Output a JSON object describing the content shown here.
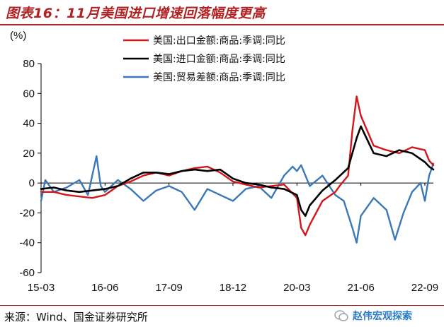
{
  "header": {
    "title": "图表16：11月美国进口增速回落幅度更高"
  },
  "footer": {
    "source": "来源：Wind、国金证券研究所",
    "watermark": "赵伟宏观探索"
  },
  "colors": {
    "accent": "#b22222",
    "exports": "#d2161b",
    "imports": "#000000",
    "balance": "#3b78b5",
    "watermark": "#2b7cc4"
  },
  "chart_data": {
    "type": "line",
    "unit_label": "(%)",
    "ylim": [
      -60,
      80
    ],
    "y_ticks": [
      "80",
      "60",
      "40",
      "20",
      "0",
      "-20",
      "-40",
      "-60"
    ],
    "x_ticks": [
      "15-03",
      "16-06",
      "17-09",
      "18-12",
      "20-03",
      "21-06",
      "22-09"
    ],
    "x_range": [
      "2015-03",
      "2022-11"
    ],
    "grid": false,
    "legend_position": "top-right",
    "series": [
      {
        "name": "美国:出口金额:商品:季调:同比",
        "color": "#d2161b",
        "points": [
          [
            "2015-03",
            -6
          ],
          [
            "2015-06",
            -6
          ],
          [
            "2015-09",
            -8
          ],
          [
            "2015-12",
            -9
          ],
          [
            "2016-03",
            -10
          ],
          [
            "2016-06",
            -8
          ],
          [
            "2016-09",
            -2
          ],
          [
            "2016-12",
            1
          ],
          [
            "2017-03",
            5
          ],
          [
            "2017-06",
            7
          ],
          [
            "2017-09",
            5
          ],
          [
            "2017-12",
            8
          ],
          [
            "2018-03",
            10
          ],
          [
            "2018-06",
            11
          ],
          [
            "2018-09",
            7
          ],
          [
            "2018-12",
            1
          ],
          [
            "2019-03",
            -1
          ],
          [
            "2019-06",
            -3
          ],
          [
            "2019-09",
            -2
          ],
          [
            "2019-12",
            -1
          ],
          [
            "2020-03",
            -10
          ],
          [
            "2020-04",
            -30
          ],
          [
            "2020-05",
            -35
          ],
          [
            "2020-06",
            -28
          ],
          [
            "2020-09",
            -12
          ],
          [
            "2020-12",
            -6
          ],
          [
            "2021-01",
            -2
          ],
          [
            "2021-03",
            5
          ],
          [
            "2021-04",
            35
          ],
          [
            "2021-05",
            58
          ],
          [
            "2021-06",
            45
          ],
          [
            "2021-09",
            25
          ],
          [
            "2021-12",
            22
          ],
          [
            "2022-03",
            20
          ],
          [
            "2022-06",
            24
          ],
          [
            "2022-09",
            22
          ],
          [
            "2022-10",
            15
          ],
          [
            "2022-11",
            12
          ]
        ]
      },
      {
        "name": "美国:进口金额:商品:季调:同比",
        "color": "#000000",
        "points": [
          [
            "2015-03",
            -4
          ],
          [
            "2015-06",
            -3
          ],
          [
            "2015-09",
            -5
          ],
          [
            "2015-12",
            -6
          ],
          [
            "2016-03",
            -5
          ],
          [
            "2016-06",
            -4
          ],
          [
            "2016-09",
            -2
          ],
          [
            "2016-12",
            3
          ],
          [
            "2017-03",
            7
          ],
          [
            "2017-06",
            7
          ],
          [
            "2017-09",
            6
          ],
          [
            "2017-12",
            8
          ],
          [
            "2018-03",
            9
          ],
          [
            "2018-06",
            8
          ],
          [
            "2018-09",
            9
          ],
          [
            "2018-12",
            3
          ],
          [
            "2019-03",
            0
          ],
          [
            "2019-06",
            -1
          ],
          [
            "2019-09",
            -3
          ],
          [
            "2019-12",
            -4
          ],
          [
            "2020-03",
            -8
          ],
          [
            "2020-04",
            -18
          ],
          [
            "2020-05",
            -22
          ],
          [
            "2020-06",
            -15
          ],
          [
            "2020-09",
            -5
          ],
          [
            "2020-12",
            2
          ],
          [
            "2021-03",
            10
          ],
          [
            "2021-05",
            30
          ],
          [
            "2021-06",
            38
          ],
          [
            "2021-09",
            20
          ],
          [
            "2021-12",
            18
          ],
          [
            "2022-03",
            22
          ],
          [
            "2022-06",
            20
          ],
          [
            "2022-09",
            14
          ],
          [
            "2022-10",
            11
          ],
          [
            "2022-11",
            9
          ]
        ]
      },
      {
        "name": "美国:贸易差额:商品:季调:同比",
        "color": "#3b78b5",
        "points": [
          [
            "2015-03",
            -12
          ],
          [
            "2015-04",
            2
          ],
          [
            "2015-06",
            -6
          ],
          [
            "2015-09",
            -3
          ],
          [
            "2015-12",
            2
          ],
          [
            "2016-02",
            -8
          ],
          [
            "2016-04",
            18
          ],
          [
            "2016-05",
            -2
          ],
          [
            "2016-06",
            -6
          ],
          [
            "2016-09",
            2
          ],
          [
            "2016-12",
            -4
          ],
          [
            "2017-03",
            -12
          ],
          [
            "2017-06",
            -5
          ],
          [
            "2017-09",
            -2
          ],
          [
            "2017-12",
            -6
          ],
          [
            "2018-03",
            -18
          ],
          [
            "2018-06",
            -4
          ],
          [
            "2018-09",
            -8
          ],
          [
            "2018-12",
            -12
          ],
          [
            "2019-03",
            -4
          ],
          [
            "2019-06",
            -2
          ],
          [
            "2019-09",
            -10
          ],
          [
            "2019-12",
            5
          ],
          [
            "2020-02",
            11
          ],
          [
            "2020-03",
            8
          ],
          [
            "2020-04",
            12
          ],
          [
            "2020-06",
            -2
          ],
          [
            "2020-09",
            5
          ],
          [
            "2020-12",
            -8
          ],
          [
            "2021-02",
            -12
          ],
          [
            "2021-04",
            -30
          ],
          [
            "2021-05",
            -40
          ],
          [
            "2021-06",
            -22
          ],
          [
            "2021-09",
            -10
          ],
          [
            "2021-12",
            -18
          ],
          [
            "2022-02",
            -38
          ],
          [
            "2022-04",
            -20
          ],
          [
            "2022-06",
            -6
          ],
          [
            "2022-08",
            0
          ],
          [
            "2022-09",
            -12
          ],
          [
            "2022-10",
            5
          ],
          [
            "2022-11",
            13
          ]
        ]
      }
    ]
  }
}
